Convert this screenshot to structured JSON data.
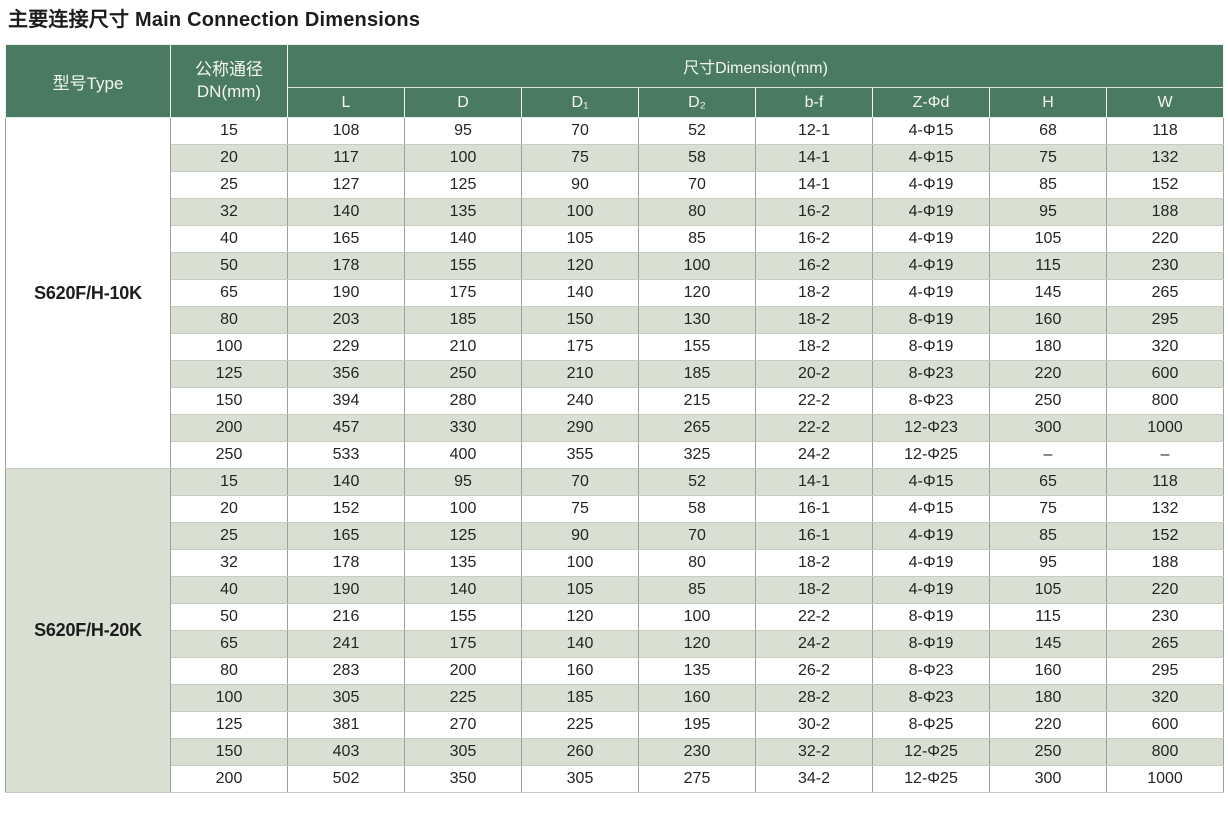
{
  "page_title": "主要连接尺寸 Main Connection Dimensions",
  "colors": {
    "header_green": "#4a7a61",
    "stripe_green": "#d9e0d3",
    "header_text": "#f3f6f2",
    "text_dark": "#242424",
    "grid_line": "#9aa09a",
    "row_line": "#c7ccc3",
    "group_divider": "#6a6a6a"
  },
  "table": {
    "header": {
      "type_label": "型号Type",
      "dn_label_line1": "公称通径",
      "dn_label_line2": "DN(mm)",
      "dimension_label": "尺寸Dimension(mm)",
      "columns": [
        "L",
        "D",
        "D₁",
        "D₂",
        "b-f",
        "Z-Φd",
        "H",
        "W"
      ]
    },
    "groups": [
      {
        "type": "S620F/H-10K",
        "rows": [
          [
            "15",
            "108",
            "95",
            "70",
            "52",
            "12-1",
            "4-Φ15",
            "68",
            "118"
          ],
          [
            "20",
            "117",
            "100",
            "75",
            "58",
            "14-1",
            "4-Φ15",
            "75",
            "132"
          ],
          [
            "25",
            "127",
            "125",
            "90",
            "70",
            "14-1",
            "4-Φ19",
            "85",
            "152"
          ],
          [
            "32",
            "140",
            "135",
            "100",
            "80",
            "16-2",
            "4-Φ19",
            "95",
            "188"
          ],
          [
            "40",
            "165",
            "140",
            "105",
            "85",
            "16-2",
            "4-Φ19",
            "105",
            "220"
          ],
          [
            "50",
            "178",
            "155",
            "120",
            "100",
            "16-2",
            "4-Φ19",
            "115",
            "230"
          ],
          [
            "65",
            "190",
            "175",
            "140",
            "120",
            "18-2",
            "4-Φ19",
            "145",
            "265"
          ],
          [
            "80",
            "203",
            "185",
            "150",
            "130",
            "18-2",
            "8-Φ19",
            "160",
            "295"
          ],
          [
            "100",
            "229",
            "210",
            "175",
            "155",
            "18-2",
            "8-Φ19",
            "180",
            "320"
          ],
          [
            "125",
            "356",
            "250",
            "210",
            "185",
            "20-2",
            "8-Φ23",
            "220",
            "600"
          ],
          [
            "150",
            "394",
            "280",
            "240",
            "215",
            "22-2",
            "8-Φ23",
            "250",
            "800"
          ],
          [
            "200",
            "457",
            "330",
            "290",
            "265",
            "22-2",
            "12-Φ23",
            "300",
            "1000"
          ],
          [
            "250",
            "533",
            "400",
            "355",
            "325",
            "24-2",
            "12-Φ25",
            "–",
            "–"
          ]
        ]
      },
      {
        "type": "S620F/H-20K",
        "rows": [
          [
            "15",
            "140",
            "95",
            "70",
            "52",
            "14-1",
            "4-Φ15",
            "65",
            "118"
          ],
          [
            "20",
            "152",
            "100",
            "75",
            "58",
            "16-1",
            "4-Φ15",
            "75",
            "132"
          ],
          [
            "25",
            "165",
            "125",
            "90",
            "70",
            "16-1",
            "4-Φ19",
            "85",
            "152"
          ],
          [
            "32",
            "178",
            "135",
            "100",
            "80",
            "18-2",
            "4-Φ19",
            "95",
            "188"
          ],
          [
            "40",
            "190",
            "140",
            "105",
            "85",
            "18-2",
            "4-Φ19",
            "105",
            "220"
          ],
          [
            "50",
            "216",
            "155",
            "120",
            "100",
            "22-2",
            "8-Φ19",
            "115",
            "230"
          ],
          [
            "65",
            "241",
            "175",
            "140",
            "120",
            "24-2",
            "8-Φ19",
            "145",
            "265"
          ],
          [
            "80",
            "283",
            "200",
            "160",
            "135",
            "26-2",
            "8-Φ23",
            "160",
            "295"
          ],
          [
            "100",
            "305",
            "225",
            "185",
            "160",
            "28-2",
            "8-Φ23",
            "180",
            "320"
          ],
          [
            "125",
            "381",
            "270",
            "225",
            "195",
            "30-2",
            "8-Φ25",
            "220",
            "600"
          ],
          [
            "150",
            "403",
            "305",
            "260",
            "230",
            "32-2",
            "12-Φ25",
            "250",
            "800"
          ],
          [
            "200",
            "502",
            "350",
            "305",
            "275",
            "34-2",
            "12-Φ25",
            "300",
            "1000"
          ]
        ]
      }
    ]
  }
}
